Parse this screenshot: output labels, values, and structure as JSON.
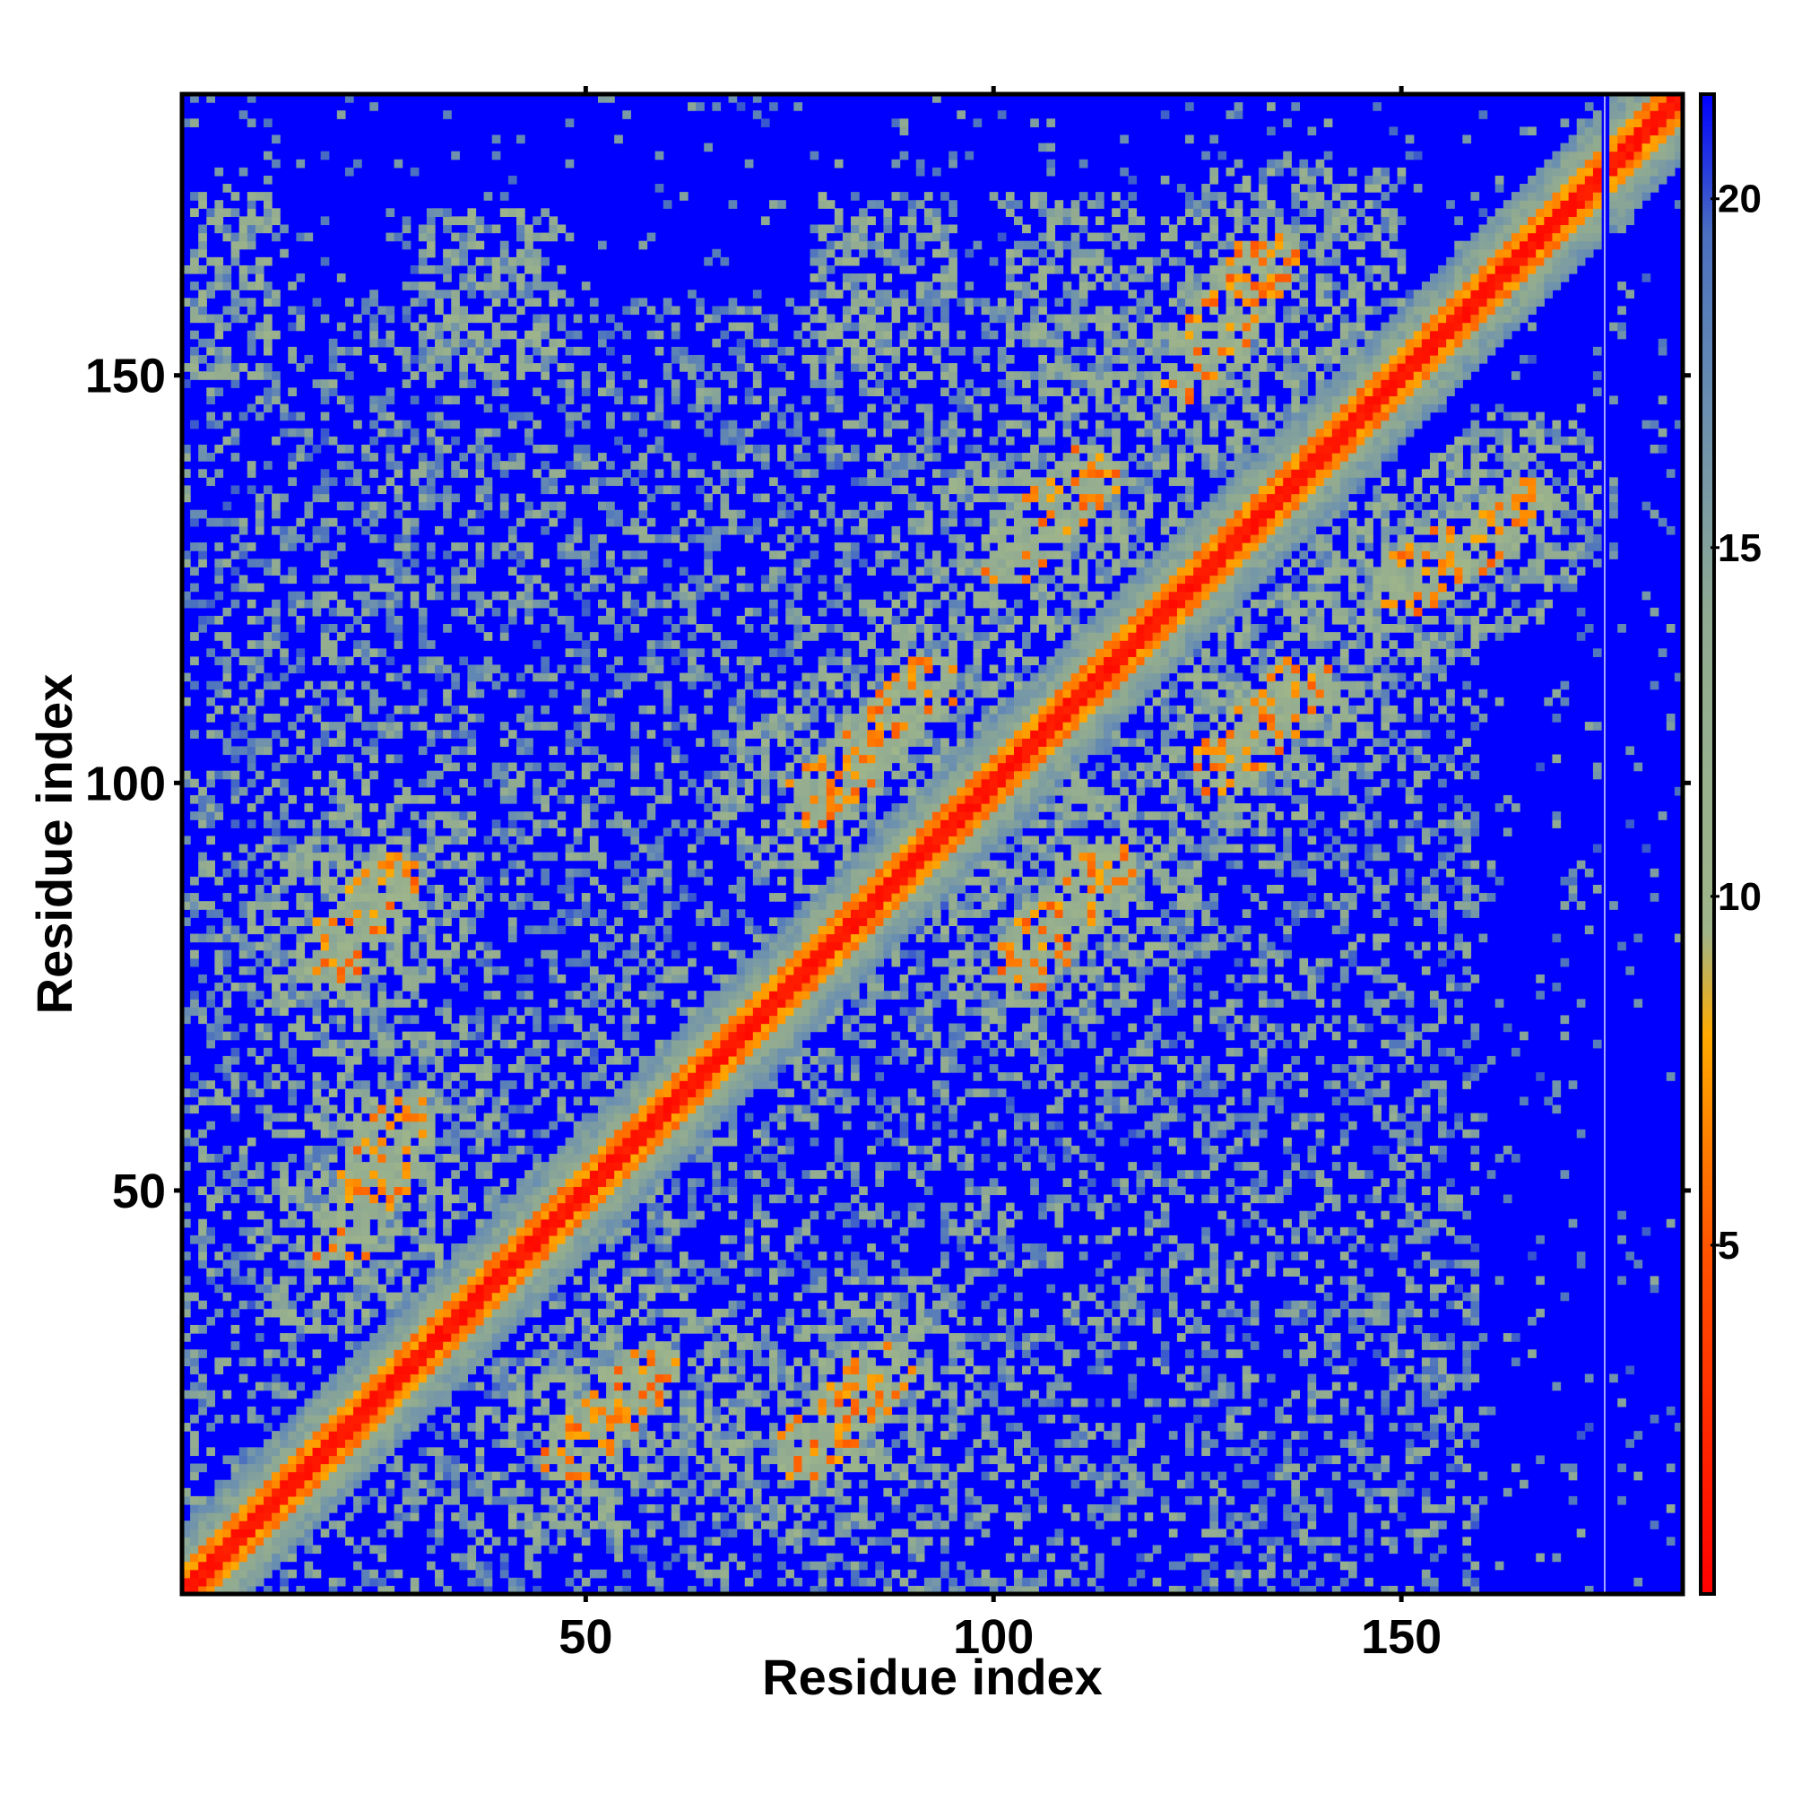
{
  "chart_data": {
    "type": "heatmap",
    "title": "",
    "xlabel": "Residue index",
    "ylabel": "Residue index",
    "xlim": [
      1,
      184
    ],
    "ylim": [
      1,
      184
    ],
    "x_ticks": [
      50,
      100,
      150
    ],
    "y_ticks": [
      50,
      100,
      150
    ],
    "colorbar": {
      "ticks": [
        5,
        10,
        15,
        20
      ],
      "range": [
        0,
        21.5
      ],
      "stops": [
        {
          "value": 0,
          "color": "#ff0000"
        },
        {
          "value": 5,
          "color": "#ff5500"
        },
        {
          "value": 8,
          "color": "#ffaa00"
        },
        {
          "value": 9.5,
          "color": "#9fb58a"
        },
        {
          "value": 14,
          "color": "#90aa92"
        },
        {
          "value": 17,
          "color": "#6a8fb0"
        },
        {
          "value": 19.5,
          "color": "#4a70c0"
        },
        {
          "value": 21.5,
          "color": "#0000ff"
        }
      ]
    },
    "value_description": "Pairwise residue distance map; diagonal band near 0, background saturated at maximum",
    "grid": false,
    "features": {
      "diagonal_width": 3,
      "helix_blocks": [
        {
          "x": [
            2,
            12
          ],
          "y": [
            150,
            172
          ]
        },
        {
          "x": [
            30,
            47
          ],
          "y": [
            150,
            170
          ]
        },
        {
          "x": [
            78,
            95
          ],
          "y": [
            150,
            172
          ]
        },
        {
          "x": [
            102,
            118
          ],
          "y": [
            145,
            172
          ]
        },
        {
          "x": [
            130,
            150
          ],
          "y": [
            140,
            175
          ]
        }
      ],
      "contact_bands": [
        {
          "from": [
            20,
            44
          ],
          "to": [
            28,
            58
          ],
          "width": 4
        },
        {
          "from": [
            18,
            78
          ],
          "to": [
            26,
            88
          ],
          "width": 4
        },
        {
          "from": [
            48,
            18
          ],
          "to": [
            58,
            28
          ],
          "width": 4
        },
        {
          "from": [
            77,
            18
          ],
          "to": [
            87,
            28
          ],
          "width": 4
        },
        {
          "from": [
            78,
            98
          ],
          "to": [
            92,
            112
          ],
          "width": 4
        },
        {
          "from": [
            104,
            78
          ],
          "to": [
            114,
            90
          ],
          "width": 4
        },
        {
          "from": [
            124,
            150
          ],
          "to": [
            134,
            165
          ],
          "width": 4
        },
        {
          "from": [
            150,
            124
          ],
          "to": [
            165,
            134
          ],
          "width": 4
        },
        {
          "from": [
            102,
            128
          ],
          "to": [
            112,
            138
          ],
          "width": 4
        },
        {
          "from": [
            128,
            102
          ],
          "to": [
            138,
            112
          ],
          "width": 4
        }
      ],
      "blank_column_at": 175
    }
  }
}
